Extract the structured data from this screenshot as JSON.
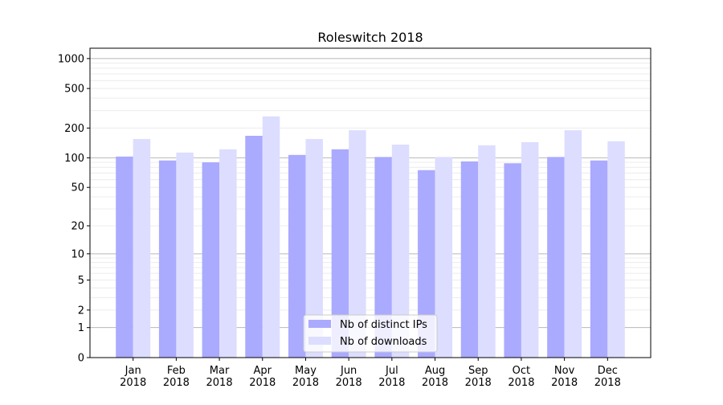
{
  "chart_data": {
    "type": "bar",
    "title": "Roleswitch 2018",
    "xlabel": "",
    "ylabel": "",
    "yscale": "symlog",
    "ylim": [
      0,
      1270
    ],
    "yticks": [
      0,
      1,
      2,
      5,
      10,
      20,
      50,
      100,
      200,
      500,
      1000
    ],
    "grid": true,
    "legend_position": "lower center",
    "categories": [
      "Jan\n2018",
      "Feb\n2018",
      "Mar\n2018",
      "Apr\n2018",
      "May\n2018",
      "Jun\n2018",
      "Jul\n2018",
      "Aug\n2018",
      "Sep\n2018",
      "Oct\n2018",
      "Nov\n2018",
      "Dec\n2018"
    ],
    "series": [
      {
        "name": "Nb of distinct IPs",
        "color": "#aaaaff",
        "values": [
          103,
          94,
          90,
          167,
          107,
          122,
          102,
          75,
          92,
          88,
          102,
          94
        ]
      },
      {
        "name": "Nb of downloads",
        "color": "#ddddff",
        "values": [
          155,
          113,
          122,
          262,
          155,
          190,
          136,
          102,
          134,
          144,
          190,
          147
        ]
      }
    ]
  }
}
